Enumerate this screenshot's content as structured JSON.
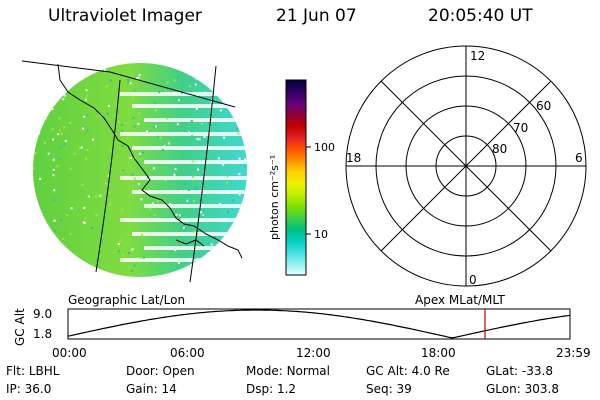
{
  "header": {
    "title": "Ultraviolet Imager",
    "date": "21 Jun 07",
    "time": "20:05:40 UT"
  },
  "colorbar": {
    "unit_label": "photon cm⁻²s⁻¹",
    "ticks": [
      "100",
      "10"
    ],
    "colors": [
      "#000040",
      "#300060",
      "#600080",
      "#900040",
      "#c00000",
      "#e02020",
      "#ff5000",
      "#ff9000",
      "#ffd000",
      "#f0f000",
      "#c0f000",
      "#80e000",
      "#40d040",
      "#00c080",
      "#00d0c0",
      "#40e0e0",
      "#90f0f0",
      "#e0ffff"
    ]
  },
  "polar_plot": {
    "clock_labels": [
      "12",
      "18",
      "6",
      "0"
    ],
    "lat_labels": [
      "60",
      "70",
      "80"
    ]
  },
  "map_labels": {
    "left": "Geographic Lat/Lon",
    "right": "Apex MLat/MLT"
  },
  "altitude_plot": {
    "y_label": "GC Alt",
    "y_ticks": [
      "9.0",
      "1.8"
    ],
    "x_ticks": [
      "00:00",
      "06:00",
      "12:00",
      "18:00",
      "23:59"
    ],
    "line_color": "#000000",
    "marker_color": "#c00000"
  },
  "info": {
    "row1": [
      {
        "label": "Flt:",
        "value": "LBHL"
      },
      {
        "label": "Door:",
        "value": "Open"
      },
      {
        "label": "Mode:",
        "value": "Normal"
      },
      {
        "label": "GC Alt:",
        "value": "4.0 Re"
      },
      {
        "label": "GLat:",
        "value": "-33.8"
      }
    ],
    "row2": [
      {
        "label": "IP:",
        "value": "36.0"
      },
      {
        "label": "Gain:",
        "value": "14"
      },
      {
        "label": "Dsp:",
        "value": "1.2"
      },
      {
        "label": "Seq:",
        "value": "39"
      },
      {
        "label": "GLon:",
        "value": "303.8"
      }
    ]
  }
}
